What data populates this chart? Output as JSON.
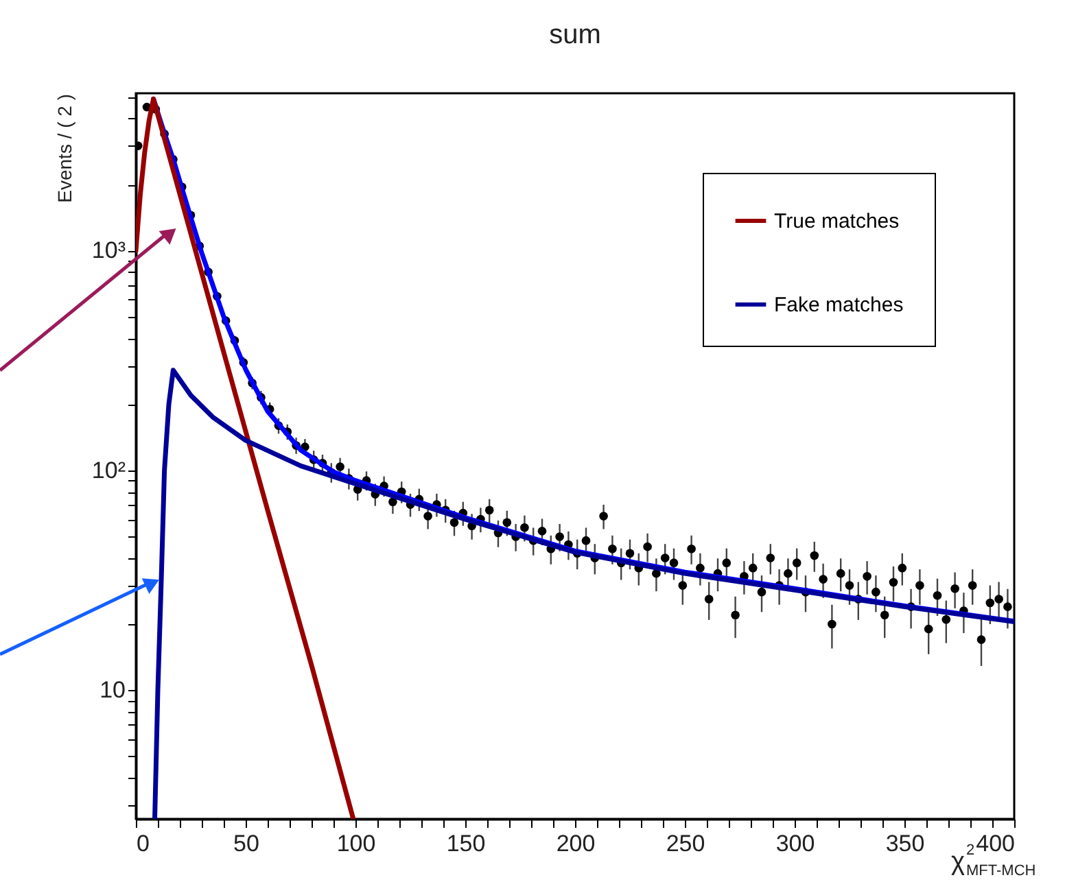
{
  "chart_data": {
    "type": "scatter",
    "title": "sum",
    "xlabel": "χ$^{2}$$_{MFT-MCH}$",
    "ylabel": "Events / ( 2 )",
    "xlim": [
      0,
      400
    ],
    "xticks": [
      0,
      {
        "value": 10,
        "label": null
      },
      {
        "value": 20,
        "label": null
      },
      {
        "value": 30,
        "label": null
      },
      {
        "value": 40,
        "label": null
      },
      50,
      {
        "value": 60,
        "label": null
      },
      {
        "value": 70,
        "label": null
      },
      {
        "value": 80,
        "label": null
      },
      {
        "value": 90,
        "label": null
      },
      100,
      {
        "value": 110,
        "label": null
      },
      {
        "value": 120,
        "label": null
      },
      {
        "value": 130,
        "label": null
      },
      {
        "value": 140,
        "label": null
      },
      150,
      {
        "value": 160,
        "label": null
      },
      {
        "value": 170,
        "label": null
      },
      {
        "value": 180,
        "label": null
      },
      {
        "value": 190,
        "label": null
      },
      200,
      {
        "value": 210,
        "label": null
      },
      {
        "value": 220,
        "label": null
      },
      {
        "value": 230,
        "label": null
      },
      {
        "value": 240,
        "label": null
      },
      250,
      {
        "value": 260,
        "label": null
      },
      {
        "value": 270,
        "label": null
      },
      {
        "value": 280,
        "label": null
      },
      {
        "value": 290,
        "label": null
      },
      300,
      {
        "value": 310,
        "label": null
      },
      {
        "value": 320,
        "label": null
      },
      {
        "value": 330,
        "label": null
      },
      {
        "value": 340,
        "label": null
      },
      350,
      {
        "value": 360,
        "label": null
      },
      {
        "value": 370,
        "label": null
      },
      {
        "value": 380,
        "label": null
      },
      {
        "value": 390,
        "label": null
      },
      400
    ],
    "ylim": [
      2.6,
      5200
    ],
    "log": true,
    "yticks": [
      {
        "value": 3,
        "label": null
      },
      {
        "value": 4,
        "label": null
      },
      {
        "value": 5,
        "label": null
      },
      {
        "value": 6,
        "label": null
      },
      {
        "value": 7,
        "label": null
      },
      {
        "value": 8,
        "label": null
      },
      {
        "value": 9,
        "label": null
      },
      10,
      {
        "value": 20,
        "label": null
      },
      {
        "value": 30,
        "label": null
      },
      {
        "value": 40,
        "label": null
      },
      {
        "value": 50,
        "label": null
      },
      {
        "value": 60,
        "label": null
      },
      {
        "value": 70,
        "label": null
      },
      {
        "value": 80,
        "label": null
      },
      {
        "value": 90,
        "label": null
      },
      {
        "value": 100,
        "label": "10²"
      },
      {
        "value": 200,
        "label": null
      },
      {
        "value": 300,
        "label": null
      },
      {
        "value": 400,
        "label": null
      },
      {
        "value": 500,
        "label": null
      },
      {
        "value": 600,
        "label": null
      },
      {
        "value": 700,
        "label": null
      },
      {
        "value": 800,
        "label": null
      },
      {
        "value": 900,
        "label": null
      },
      {
        "value": 1000,
        "label": "10³"
      },
      {
        "value": 2000,
        "label": null
      },
      {
        "value": 3000,
        "label": null
      },
      {
        "value": 4000,
        "label": null
      },
      {
        "value": 5000,
        "label": null
      }
    ],
    "grid": false,
    "legend": "top right",
    "series": [
      {
        "color": "#000000",
        "marker": "circle",
        "x": [
          1,
          5,
          9,
          13,
          17,
          21,
          25,
          29,
          33,
          37,
          41,
          45,
          49,
          53,
          57,
          61,
          65,
          69,
          73,
          77,
          81,
          85,
          89,
          93,
          97,
          101,
          105,
          109,
          113,
          117,
          121,
          125,
          129,
          133,
          137,
          141,
          145,
          149,
          153,
          157,
          161,
          165,
          169,
          173,
          177,
          181,
          185,
          189,
          193,
          197,
          201,
          205,
          209,
          213,
          217,
          221,
          225,
          229,
          233,
          237,
          241,
          245,
          249,
          253,
          257,
          261,
          265,
          269,
          273,
          277,
          281,
          285,
          289,
          293,
          297,
          301,
          305,
          309,
          313,
          317,
          321,
          325,
          329,
          333,
          337,
          341,
          345,
          349,
          353,
          357,
          361,
          365,
          369,
          373,
          377,
          381,
          385,
          389,
          393,
          397
        ],
        "values": [
          3000,
          4500,
          4400,
          3400,
          2600,
          1950,
          1450,
          1050,
          800,
          620,
          480,
          390,
          310,
          250,
          215,
          190,
          160,
          150,
          130,
          128,
          112,
          108,
          98,
          104,
          92,
          82,
          90,
          78,
          85,
          72,
          80,
          70,
          74,
          62,
          70,
          66,
          58,
          64,
          56,
          60,
          66,
          52,
          58,
          50,
          55,
          48,
          53,
          44,
          50,
          46,
          42,
          48,
          40,
          62,
          44,
          38,
          42,
          36,
          45,
          34,
          40,
          38,
          30,
          44,
          36,
          26,
          34,
          38,
          22,
          33,
          36,
          28,
          40,
          30,
          34,
          38,
          28,
          41,
          32,
          20,
          34,
          30,
          26,
          33,
          28,
          22,
          31,
          36,
          24,
          30,
          19,
          27,
          21,
          29,
          23,
          30,
          17,
          25,
          26,
          24
        ],
        "errors": [
          null,
          null,
          null,
          null,
          null,
          null,
          38,
          32,
          28,
          25,
          22,
          20,
          18,
          16,
          15,
          14,
          13,
          12,
          11,
          11,
          11,
          10,
          10,
          10,
          10,
          9,
          9,
          9,
          9,
          8.5,
          9,
          8.4,
          8.6,
          7.9,
          8.4,
          8.1,
          7.6,
          8,
          7.5,
          7.7,
          8.1,
          7.2,
          7.6,
          7.1,
          7.4,
          6.9,
          7.3,
          6.6,
          7.1,
          6.8,
          6.5,
          6.9,
          6.3,
          7.9,
          6.6,
          6.2,
          6.5,
          6,
          6.7,
          5.8,
          6.3,
          6.2,
          5.5,
          6.6,
          6,
          5.1,
          5.8,
          6.2,
          4.7,
          5.7,
          6,
          5.3,
          6.3,
          5.5,
          5.8,
          6.2,
          5.3,
          6.4,
          5.7,
          4.5,
          5.8,
          5.5,
          5.1,
          5.7,
          5.3,
          4.7,
          5.6,
          6,
          4.9,
          5.5,
          4.4,
          5.2,
          4.6,
          5.4,
          4.8,
          5.5,
          4.1,
          5,
          5.1,
          4.9
        ]
      },
      {
        "type": "line",
        "color": "#0000ff",
        "x": [
          8,
          12,
          17,
          20,
          25,
          30,
          40,
          50,
          60,
          75,
          90,
          100,
          150,
          200,
          250,
          300,
          350,
          400
        ],
        "values": [
          4900,
          3670,
          2609,
          2071,
          1417,
          976,
          500,
          288,
          186,
          124,
          98.5,
          90,
          61,
          43,
          34.5,
          29,
          24.2,
          20.6
        ]
      },
      {
        "type": "line",
        "name": "True matches",
        "color": "#990000",
        "x": [
          0,
          2,
          4,
          6,
          8,
          20,
          40,
          60,
          80,
          99
        ],
        "values": [
          1000,
          1800,
          2800,
          3900,
          4900,
          1811,
          345,
          66,
          13,
          2.6
        ]
      },
      {
        "type": "line",
        "name": "Fake matches",
        "color": "#000099",
        "x": [
          8.6,
          10,
          11.5,
          13,
          15,
          17,
          25,
          35,
          50,
          75,
          100,
          150,
          200,
          250,
          300,
          350,
          400
        ],
        "values": [
          2.6,
          10,
          30,
          100,
          200,
          286,
          220,
          175,
          137,
          105,
          87,
          60,
          42.5,
          34,
          28.6,
          24,
          20.5
        ]
      }
    ]
  }
}
